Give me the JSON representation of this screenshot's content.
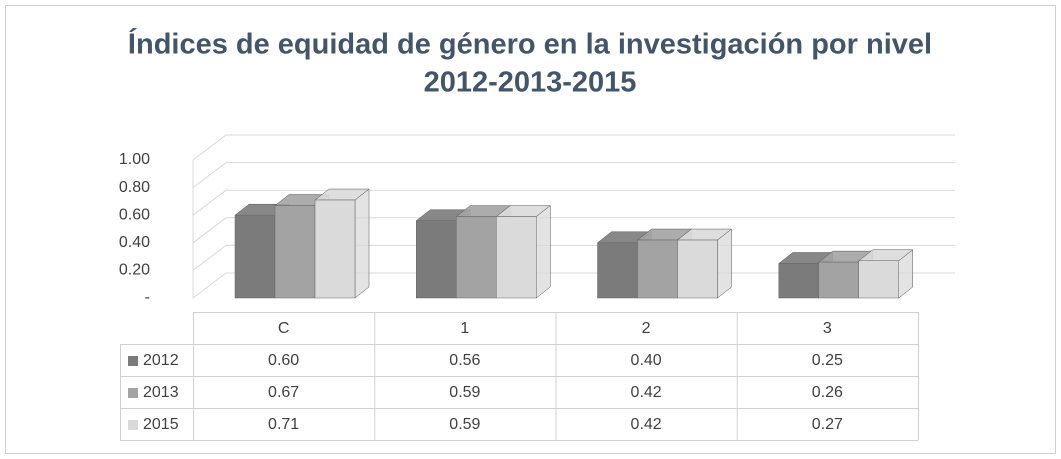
{
  "chart_data": {
    "type": "bar3d",
    "title": "Índices de equidad de género en la investigación por nivel",
    "subtitle": "2012-2013-2015",
    "categories": [
      "C",
      "1",
      "2",
      "3"
    ],
    "series": [
      {
        "name": "2012",
        "color": "#7b7b7b",
        "values": [
          0.6,
          0.56,
          0.4,
          0.25
        ],
        "value_labels": [
          "0.60",
          "0.56",
          "0.40",
          "0.25"
        ]
      },
      {
        "name": "2013",
        "color": "#a3a3a3",
        "values": [
          0.67,
          0.59,
          0.42,
          0.26
        ],
        "value_labels": [
          "0.67",
          "0.59",
          "0.42",
          "0.26"
        ]
      },
      {
        "name": "2015",
        "color": "#dadada",
        "values": [
          0.71,
          0.59,
          0.42,
          0.27
        ],
        "value_labels": [
          "0.71",
          "0.59",
          "0.42",
          "0.27"
        ]
      }
    ],
    "ylim": [
      0,
      1
    ],
    "yticks": [
      {
        "value": 0,
        "label": "-"
      },
      {
        "value": 0.2,
        "label": "0.20"
      },
      {
        "value": 0.4,
        "label": "0.40"
      },
      {
        "value": 0.6,
        "label": "0.60"
      },
      {
        "value": 0.8,
        "label": "0.80"
      },
      {
        "value": 1,
        "label": "1.00"
      }
    ],
    "grid": true
  }
}
